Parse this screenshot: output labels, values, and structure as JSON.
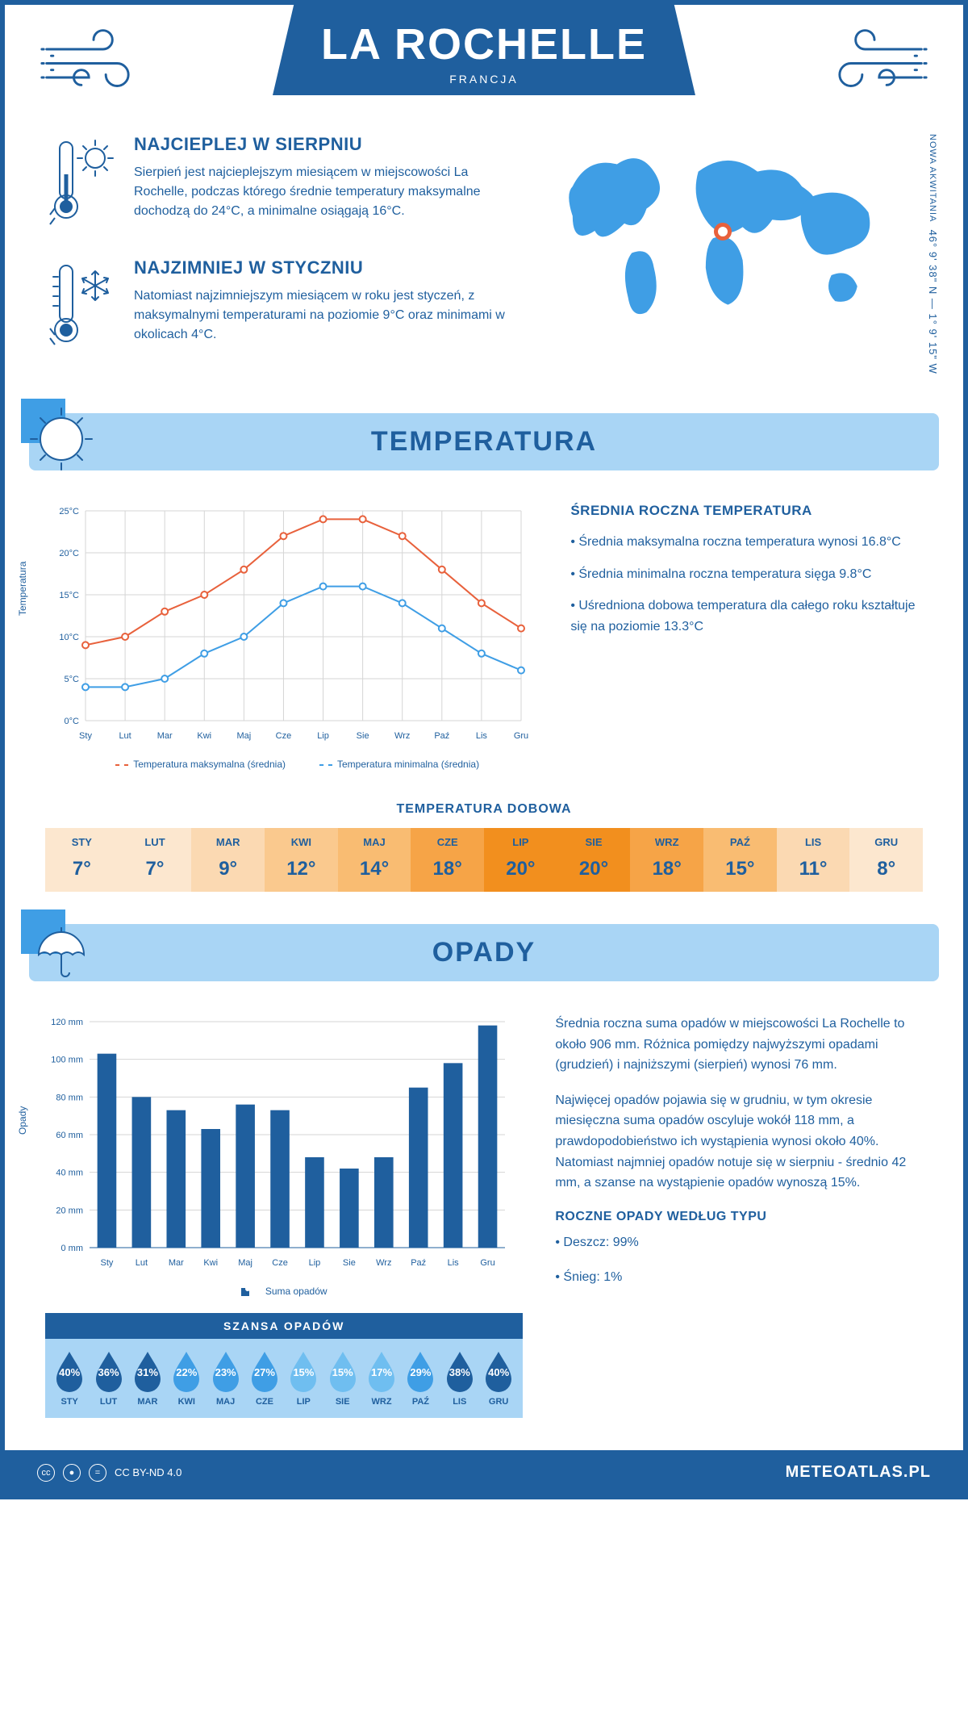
{
  "colors": {
    "primary": "#1f5f9e",
    "light_blue": "#a9d5f5",
    "map_fill": "#3f9ee5",
    "marker": "#e8613c",
    "temp_max_line": "#e8613c",
    "temp_min_line": "#3f9ee5",
    "bar_fill": "#1f5f9e",
    "grid": "#d5d5d5"
  },
  "header": {
    "title": "LA ROCHELLE",
    "subtitle": "FRANCJA"
  },
  "location": {
    "region": "NOWA AKWITANIA",
    "coords": "46° 9' 38\" N — 1° 9' 15\" W",
    "marker_pos": {
      "left_pct": 46,
      "top_pct": 36
    }
  },
  "facts": {
    "hot": {
      "title": "NAJCIEPLEJ W SIERPNIU",
      "text": "Sierpień jest najcieplejszym miesiącem w miejscowości La Rochelle, podczas którego średnie temperatury maksymalne dochodzą do 24°C, a minimalne osiągają 16°C."
    },
    "cold": {
      "title": "NAJZIMNIEJ W STYCZNIU",
      "text": "Natomiast najzimniejszym miesiącem w roku jest styczeń, z maksymalnymi temperaturami na poziomie 9°C oraz minimami w okolicach 4°C."
    }
  },
  "temperature": {
    "section_title": "TEMPERATURA",
    "info_title": "ŚREDNIA ROCZNA TEMPERATURA",
    "info_points": [
      "• Średnia maksymalna roczna temperatura wynosi 16.8°C",
      "• Średnia minimalna roczna temperatura sięga 9.8°C",
      "• Uśredniona dobowa temperatura dla całego roku kształtuje się na poziomie 13.3°C"
    ],
    "chart": {
      "type": "line",
      "y_label": "Temperatura",
      "months": [
        "Sty",
        "Lut",
        "Mar",
        "Kwi",
        "Maj",
        "Cze",
        "Lip",
        "Sie",
        "Wrz",
        "Paź",
        "Lis",
        "Gru"
      ],
      "ylim": [
        0,
        25
      ],
      "ytick_step": 5,
      "ytick_suffix": "°C",
      "series": [
        {
          "name": "Temperatura maksymalna (średnia)",
          "color": "#e8613c",
          "values": [
            9,
            10,
            13,
            15,
            18,
            22,
            24,
            24,
            22,
            18,
            14,
            11
          ]
        },
        {
          "name": "Temperatura minimalna (średnia)",
          "color": "#3f9ee5",
          "values": [
            4,
            4,
            5,
            8,
            10,
            14,
            16,
            16,
            14,
            11,
            8,
            6
          ]
        }
      ],
      "line_width": 2,
      "marker_radius": 4
    },
    "daily": {
      "title": "TEMPERATURA DOBOWA",
      "months": [
        "STY",
        "LUT",
        "MAR",
        "KWI",
        "MAJ",
        "CZE",
        "LIP",
        "SIE",
        "WRZ",
        "PAŹ",
        "LIS",
        "GRU"
      ],
      "values": [
        "7°",
        "7°",
        "9°",
        "12°",
        "14°",
        "18°",
        "20°",
        "20°",
        "18°",
        "15°",
        "11°",
        "8°"
      ],
      "cell_colors": [
        "#fce7cf",
        "#fce7cf",
        "#fbd9b2",
        "#fac98e",
        "#f9bc72",
        "#f6a447",
        "#f28f1e",
        "#f28f1e",
        "#f6a447",
        "#f9bc72",
        "#fbd9b2",
        "#fce7cf"
      ]
    }
  },
  "precip": {
    "section_title": "OPADY",
    "text1": "Średnia roczna suma opadów w miejscowości La Rochelle to około 906 mm. Różnica pomiędzy najwyższymi opadami (grudzień) i najniższymi (sierpień) wynosi 76 mm.",
    "text2": "Najwięcej opadów pojawia się w grudniu, w tym okresie miesięczna suma opadów oscyluje wokół 118 mm, a prawdopodobieństwo ich wystąpienia wynosi około 40%. Natomiast najmniej opadów notuje się w sierpniu - średnio 42 mm, a szanse na wystąpienie opadów wynoszą 15%.",
    "by_type_title": "ROCZNE OPADY WEDŁUG TYPU",
    "by_type": [
      "• Deszcz: 99%",
      "• Śnieg: 1%"
    ],
    "chart": {
      "type": "bar",
      "y_label": "Opady",
      "months": [
        "Sty",
        "Lut",
        "Mar",
        "Kwi",
        "Maj",
        "Cze",
        "Lip",
        "Sie",
        "Wrz",
        "Paź",
        "Lis",
        "Gru"
      ],
      "ylim": [
        0,
        120
      ],
      "ytick_step": 20,
      "ytick_suffix": " mm",
      "values": [
        103,
        80,
        73,
        63,
        76,
        73,
        48,
        42,
        48,
        85,
        98,
        118
      ],
      "bar_color": "#1f5f9e",
      "bar_width": 0.55,
      "legend": "Suma opadów"
    },
    "chance": {
      "title": "SZANSA OPADÓW",
      "months": [
        "STY",
        "LUT",
        "MAR",
        "KWI",
        "MAJ",
        "CZE",
        "LIP",
        "SIE",
        "WRZ",
        "PAŹ",
        "LIS",
        "GRU"
      ],
      "values": [
        "40%",
        "36%",
        "31%",
        "22%",
        "23%",
        "27%",
        "15%",
        "15%",
        "17%",
        "29%",
        "38%",
        "40%"
      ],
      "drop_colors": [
        "#1f5f9e",
        "#1f5f9e",
        "#1f5f9e",
        "#3f9ee5",
        "#3f9ee5",
        "#3f9ee5",
        "#6fbef0",
        "#6fbef0",
        "#6fbef0",
        "#3f9ee5",
        "#1f5f9e",
        "#1f5f9e"
      ]
    }
  },
  "footer": {
    "license": "CC BY-ND 4.0",
    "brand": "METEOATLAS.PL"
  }
}
